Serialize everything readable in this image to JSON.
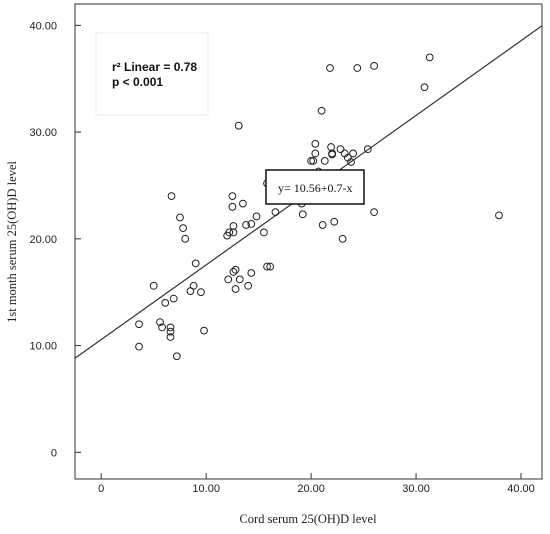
{
  "chart_data": {
    "type": "scatter",
    "title": "",
    "xlabel": "Cord serum 25(OH)D level",
    "ylabel": "1st month serum 25(OH)D level",
    "xlim": [
      -2.5,
      42
    ],
    "ylim": [
      -2.5,
      42
    ],
    "xticks": [
      0,
      10,
      20,
      30,
      40
    ],
    "xtick_labels": [
      "0",
      "10.00",
      "20.00",
      "30.00",
      "40.00"
    ],
    "yticks": [
      0,
      10,
      20,
      30,
      40
    ],
    "ytick_labels": [
      "0",
      "10.00",
      "20.00",
      "30.00",
      "40.00"
    ],
    "grid": false,
    "annotations": {
      "r2": "r² Linear = 0.78",
      "p": "p < 0.001",
      "equation": "y= 10.56+0.7-x"
    },
    "fit_line": {
      "intercept": 10.56,
      "slope": 0.7
    },
    "points": [
      [
        3.6,
        12.0
      ],
      [
        3.6,
        9.9
      ],
      [
        5.0,
        15.6
      ],
      [
        5.6,
        12.2
      ],
      [
        5.8,
        11.7
      ],
      [
        6.1,
        14.0
      ],
      [
        6.6,
        11.7
      ],
      [
        6.6,
        11.3
      ],
      [
        6.6,
        10.8
      ],
      [
        6.7,
        24.0
      ],
      [
        6.9,
        14.4
      ],
      [
        7.2,
        9.0
      ],
      [
        7.5,
        22.0
      ],
      [
        7.8,
        21.0
      ],
      [
        8.0,
        20.0
      ],
      [
        8.5,
        15.1
      ],
      [
        8.8,
        15.6
      ],
      [
        9.0,
        17.7
      ],
      [
        9.5,
        15.0
      ],
      [
        9.8,
        11.4
      ],
      [
        12.0,
        20.3
      ],
      [
        12.1,
        16.2
      ],
      [
        12.2,
        20.6
      ],
      [
        12.5,
        24.0
      ],
      [
        12.5,
        23.0
      ],
      [
        12.6,
        21.2
      ],
      [
        12.6,
        20.6
      ],
      [
        12.6,
        16.9
      ],
      [
        12.8,
        17.1
      ],
      [
        12.8,
        15.3
      ],
      [
        13.1,
        30.6
      ],
      [
        13.2,
        16.2
      ],
      [
        13.5,
        23.3
      ],
      [
        13.8,
        21.3
      ],
      [
        14.0,
        15.6
      ],
      [
        14.3,
        21.4
      ],
      [
        14.3,
        16.8
      ],
      [
        14.8,
        22.1
      ],
      [
        15.5,
        20.6
      ],
      [
        15.8,
        17.4
      ],
      [
        16.1,
        17.4
      ],
      [
        15.8,
        25.2
      ],
      [
        16.6,
        22.5
      ],
      [
        19.1,
        23.3
      ],
      [
        19.2,
        22.3
      ],
      [
        19.6,
        24.6
      ],
      [
        20.0,
        27.3
      ],
      [
        20.2,
        27.3
      ],
      [
        20.4,
        28.9
      ],
      [
        20.4,
        28.0
      ],
      [
        20.7,
        26.3
      ],
      [
        21.0,
        32.0
      ],
      [
        21.1,
        21.3
      ],
      [
        21.3,
        27.3
      ],
      [
        21.8,
        36.0
      ],
      [
        21.9,
        28.6
      ],
      [
        22.0,
        28.0
      ],
      [
        22.0,
        27.9
      ],
      [
        22.1,
        25.6
      ],
      [
        22.0,
        24.0
      ],
      [
        22.0,
        23.7
      ],
      [
        22.2,
        21.6
      ],
      [
        22.8,
        28.4
      ],
      [
        22.9,
        26.1
      ],
      [
        23.0,
        20.0
      ],
      [
        23.2,
        28.0
      ],
      [
        23.5,
        27.6
      ],
      [
        23.8,
        27.2
      ],
      [
        24.0,
        28.0
      ],
      [
        24.4,
        36.0
      ],
      [
        25.4,
        28.4
      ],
      [
        26.0,
        36.2
      ],
      [
        26.0,
        22.5
      ],
      [
        30.8,
        34.2
      ],
      [
        31.3,
        37.0
      ],
      [
        37.9,
        22.2
      ]
    ]
  }
}
